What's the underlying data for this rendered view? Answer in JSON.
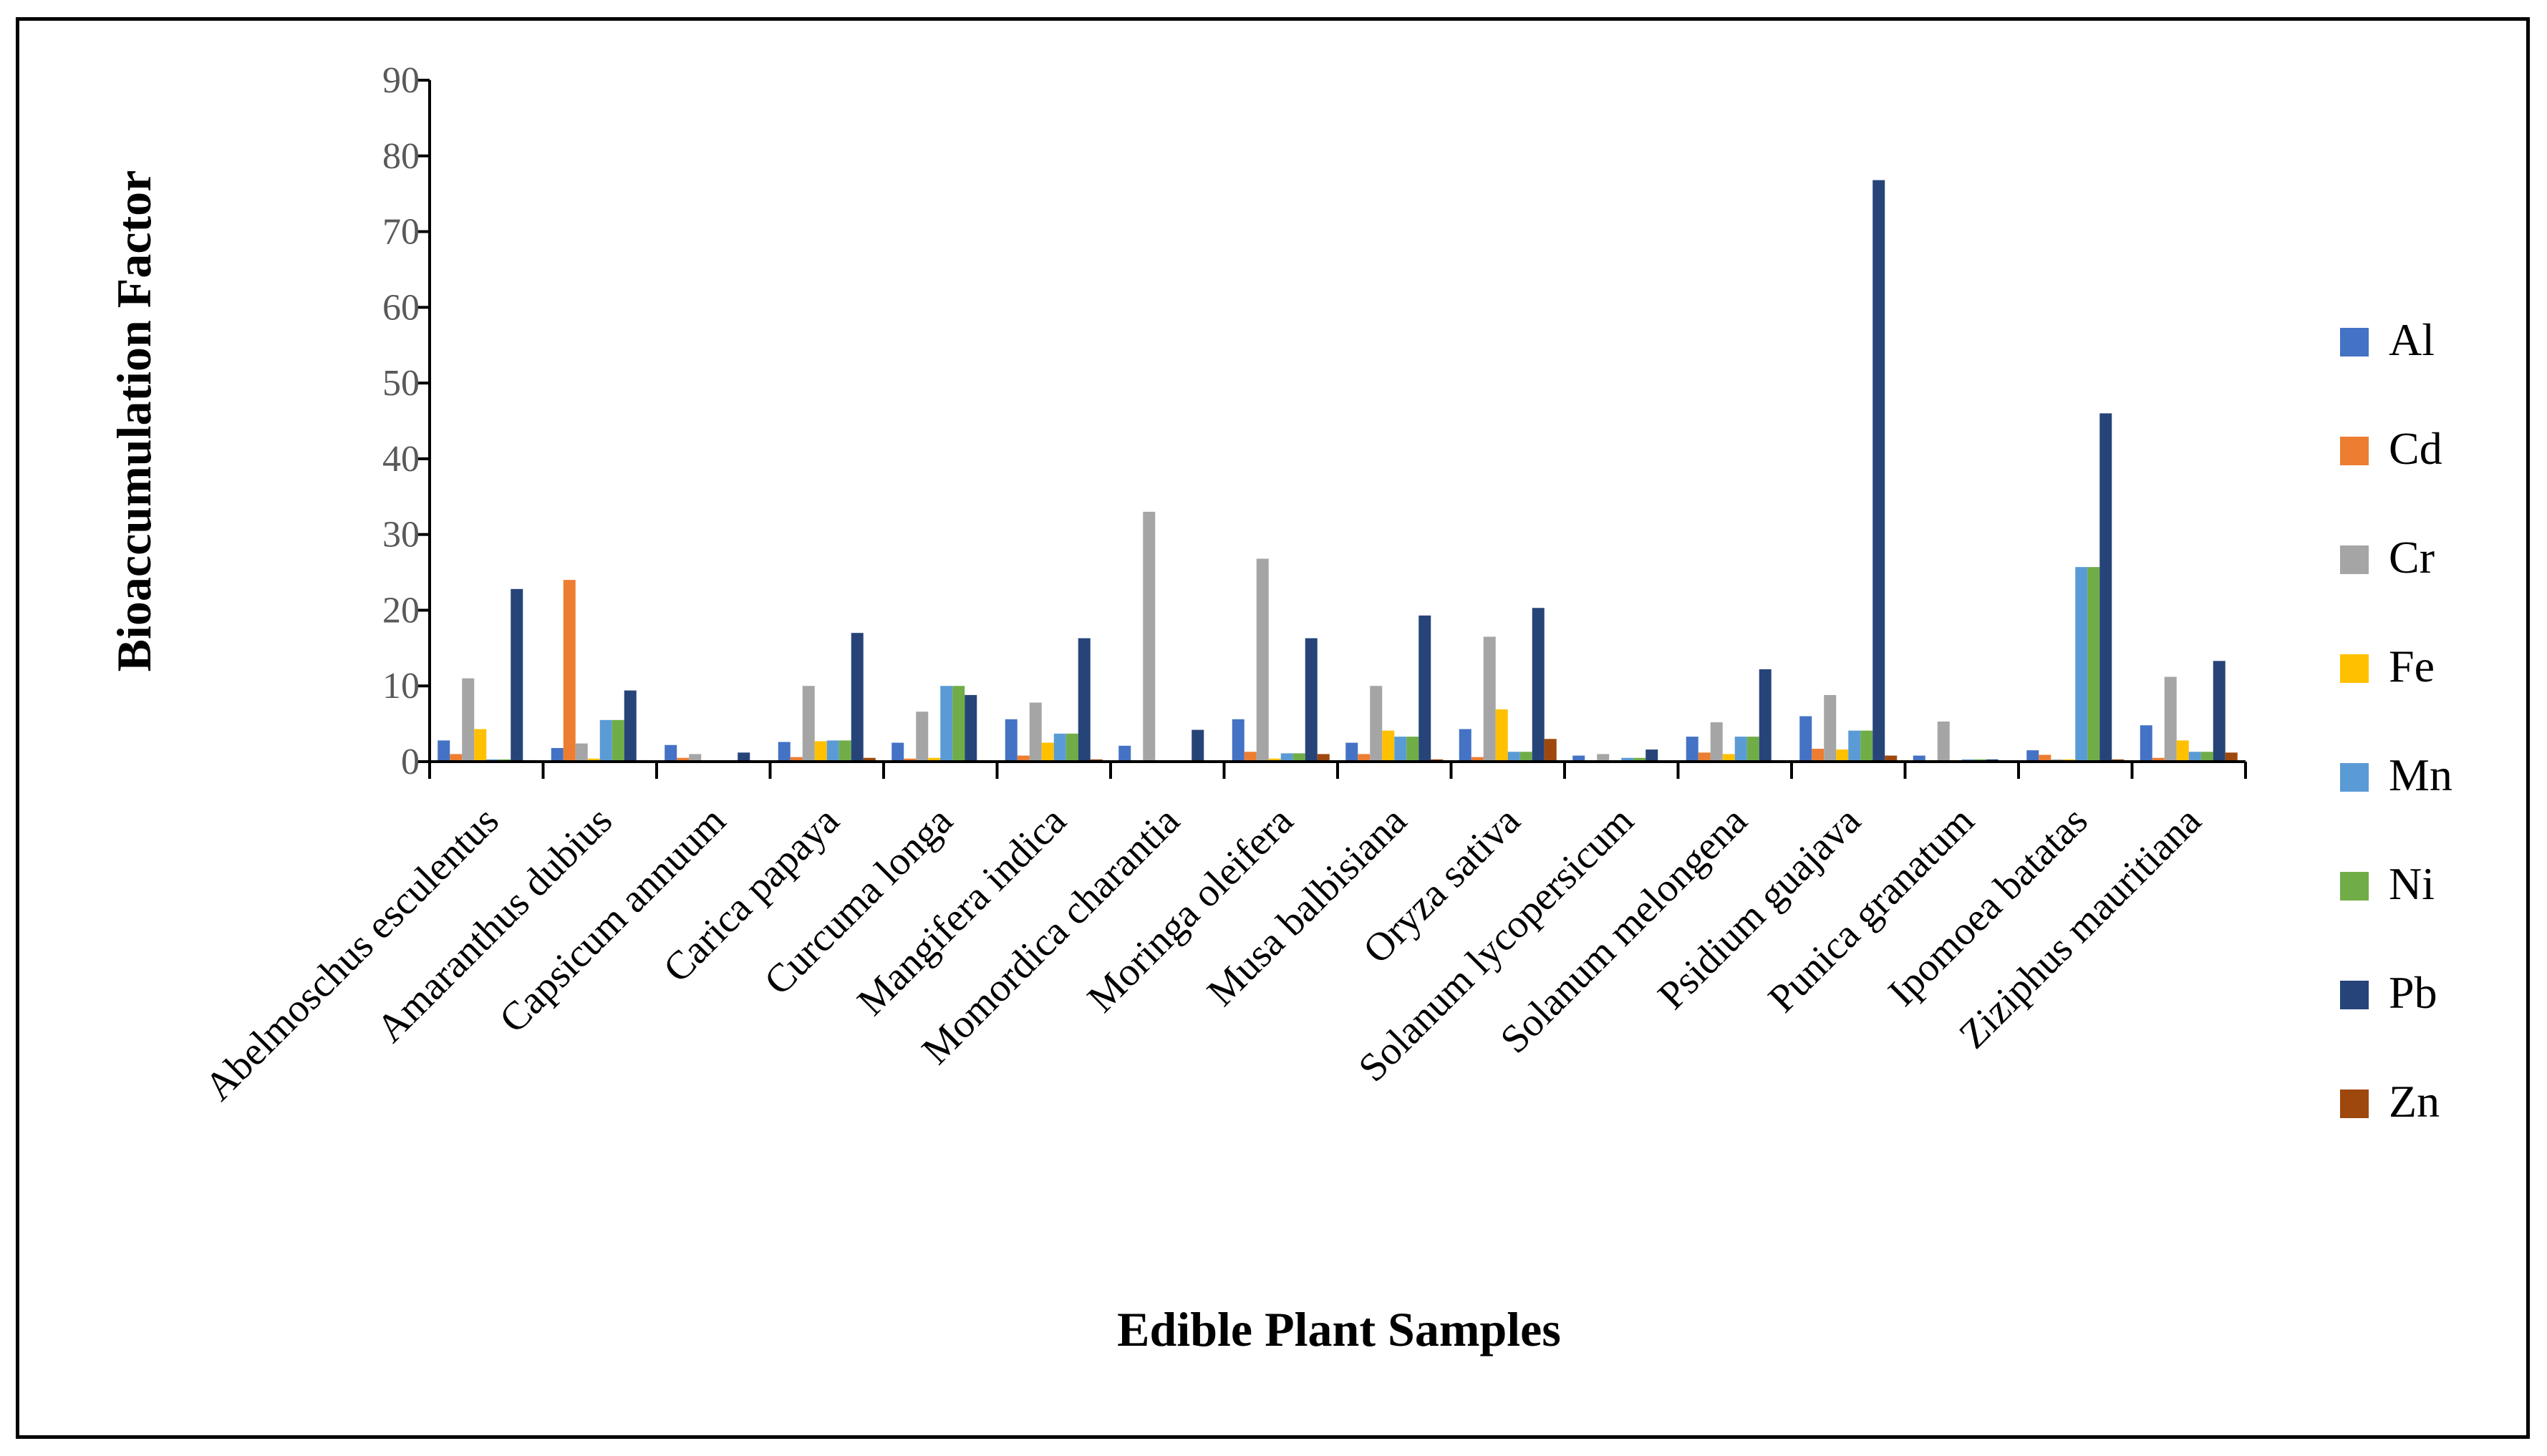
{
  "chart_data": {
    "type": "bar",
    "title": "",
    "xlabel": "Edible Plant Samples",
    "ylabel": "Bioaccumulation Factor",
    "ylim": [
      0,
      90
    ],
    "yticks": [
      0,
      10,
      20,
      30,
      40,
      50,
      60,
      70,
      80,
      90
    ],
    "grid": false,
    "legend_position": "right",
    "categories": [
      "Abelmoschus esculentus",
      "Amaranthus dubius",
      "Capsicum annuum",
      "Carica papaya",
      "Curcuma longa",
      "Mangifera indica",
      "Momordica charantia",
      "Moringa oleifera",
      "Musa balbisiana",
      "Oryza sativa",
      "Solanum lycopersicum",
      "Solanum melongena",
      "Psidium guajava",
      "Punica granatum",
      "Ipomoea batatas",
      "Ziziphus mauritiana"
    ],
    "series": [
      {
        "name": "Al",
        "color": "#4472C4",
        "values": [
          2.8,
          1.8,
          2.2,
          2.6,
          2.5,
          5.6,
          2.1,
          5.6,
          2.5,
          4.3,
          0.8,
          3.3,
          6.0,
          0.8,
          1.5,
          4.8
        ]
      },
      {
        "name": "Cd",
        "color": "#ED7D31",
        "values": [
          1.0,
          24.0,
          0.5,
          0.6,
          0.4,
          0.8,
          0.2,
          1.3,
          1.0,
          0.6,
          0.2,
          1.2,
          1.7,
          0.2,
          0.9,
          0.5
        ]
      },
      {
        "name": "Cr",
        "color": "#A5A5A5",
        "values": [
          11.0,
          2.4,
          1.0,
          10.0,
          6.6,
          7.8,
          33.0,
          26.8,
          10.0,
          16.5,
          1.0,
          5.2,
          8.8,
          5.3,
          0.3,
          11.2
        ]
      },
      {
        "name": "Fe",
        "color": "#FFC000",
        "values": [
          4.3,
          0.4,
          0.2,
          2.7,
          0.5,
          2.5,
          0.2,
          0.4,
          4.1,
          6.9,
          0.2,
          1.0,
          1.6,
          0.2,
          0.3,
          2.8
        ]
      },
      {
        "name": "Mn",
        "color": "#5B9BD5",
        "values": [
          0.3,
          5.5,
          0.2,
          2.8,
          10.0,
          3.7,
          0.2,
          1.1,
          3.3,
          1.3,
          0.5,
          3.3,
          4.1,
          0.3,
          25.7,
          1.3
        ]
      },
      {
        "name": "Ni",
        "color": "#70AD47",
        "values": [
          0.3,
          5.5,
          0.2,
          2.8,
          10.0,
          3.7,
          0.2,
          1.1,
          3.3,
          1.3,
          0.5,
          3.3,
          4.1,
          0.3,
          25.7,
          1.3
        ]
      },
      {
        "name": "Pb",
        "color": "#264478",
        "values": [
          22.8,
          9.4,
          1.2,
          17.0,
          8.8,
          16.3,
          4.2,
          16.3,
          19.3,
          20.3,
          1.6,
          12.2,
          76.8,
          0.3,
          46.0,
          13.3
        ]
      },
      {
        "name": "Zn",
        "color": "#9E480E",
        "values": [
          0.2,
          0.2,
          0.1,
          0.5,
          0.2,
          0.3,
          0.1,
          1.0,
          0.3,
          3.0,
          0.1,
          0.2,
          0.8,
          0.1,
          0.3,
          1.2
        ]
      }
    ]
  }
}
